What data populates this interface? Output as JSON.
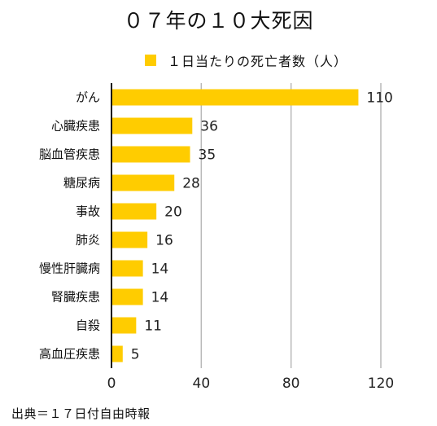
{
  "chart_data": {
    "type": "bar",
    "orientation": "horizontal",
    "title": "０７年の１０大死因",
    "series": [
      {
        "name": "１日当たりの死亡者数（人）",
        "color": "#ffcc00",
        "values": [
          110,
          36,
          35,
          28,
          20,
          16,
          14,
          14,
          11,
          5
        ]
      }
    ],
    "categories": [
      "がん",
      "心臓疾患",
      "脳血管疾患",
      "糖尿病",
      "事故",
      "肺炎",
      "慢性肝臓病",
      "腎臓疾患",
      "自殺",
      "高血圧疾患"
    ],
    "xlim": [
      0,
      120
    ],
    "xticks": [
      0,
      40,
      80,
      120
    ],
    "grid": "vertical",
    "legend_position": "top"
  },
  "source": "出典＝１７日付自由時報"
}
